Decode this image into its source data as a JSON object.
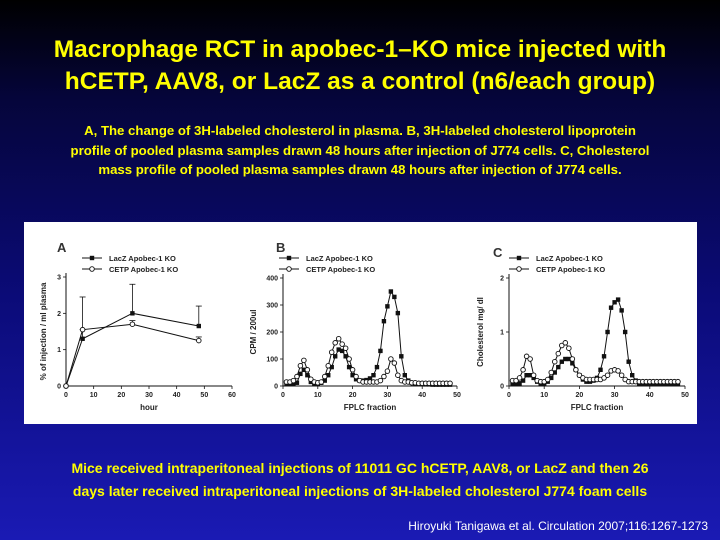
{
  "slide": {
    "title_line1": "Macrophage RCT in apobec-1–KO mice injected with",
    "title_line2": "hCETP, AAV8, or LacZ as a control (n6/each group)",
    "subtitle_line1": "A, The change of 3H-labeled cholesterol in plasma. B, 3H-labeled cholesterol lipoprotein",
    "subtitle_line2": "profile of pooled plasma samples drawn 48 hours after injection of J774 cells. C, Cholesterol",
    "subtitle_line3": "mass profile of pooled plasma samples drawn 48 hours after injection of J774 cells.",
    "note_line1": "Mice received intraperitoneal injections of 11011 GC hCETP, AAV8, or LacZ and then 26",
    "note_line2": "days later received intraperitoneal injections of 3H-labeled cholesterol J774 foam cells",
    "citation": "Hiroyuki Tanigawa et al. Circulation 2007;116:1267-1273"
  },
  "colors": {
    "title": "#ffff00",
    "citation": "#ffffff",
    "figure_bg": "#ffffff"
  },
  "chart_data": [
    {
      "panel": "A",
      "type": "line",
      "xlabel": "hour",
      "ylabel": "% of injection / ml plasma",
      "xlim": [
        0,
        60
      ],
      "ylim": [
        0,
        3
      ],
      "xticks": [
        0,
        10,
        20,
        30,
        40,
        50,
        60
      ],
      "yticks": [
        0,
        1,
        2,
        3
      ],
      "legend_position": "top",
      "series": [
        {
          "name": "LacZ Apobec-1 KO",
          "marker": "filled-square",
          "x": [
            0,
            6,
            24,
            48
          ],
          "y": [
            0,
            1.3,
            2.0,
            1.65
          ],
          "err": [
            0,
            0.25,
            0.8,
            0.55
          ]
        },
        {
          "name": "CETP Apobec-1 KO",
          "marker": "open-circle",
          "x": [
            0,
            6,
            24,
            48
          ],
          "y": [
            0,
            1.55,
            1.7,
            1.25
          ],
          "err": [
            0,
            0.9,
            0.1,
            0.1
          ]
        }
      ]
    },
    {
      "panel": "B",
      "type": "line",
      "xlabel": "FPLC fraction",
      "ylabel": "CPM / 200ul",
      "xlim": [
        0,
        50
      ],
      "ylim": [
        0,
        400
      ],
      "xticks": [
        0,
        10,
        20,
        30,
        40,
        50
      ],
      "yticks": [
        0,
        100,
        200,
        300,
        400
      ],
      "legend_position": "top",
      "series": [
        {
          "name": "LacZ Apobec-1 KO",
          "marker": "filled-square",
          "x": [
            1,
            2,
            3,
            4,
            5,
            6,
            7,
            8,
            9,
            10,
            11,
            12,
            13,
            14,
            15,
            16,
            17,
            18,
            19,
            20,
            21,
            22,
            23,
            24,
            25,
            26,
            27,
            28,
            29,
            30,
            31,
            32,
            33,
            34,
            35,
            36,
            37,
            38,
            39,
            40,
            41,
            42,
            43,
            44,
            45,
            46,
            47,
            48
          ],
          "y": [
            10,
            8,
            10,
            12,
            45,
            60,
            40,
            15,
            10,
            10,
            12,
            20,
            40,
            70,
            110,
            135,
            130,
            110,
            70,
            40,
            25,
            20,
            20,
            22,
            28,
            40,
            70,
            130,
            240,
            295,
            350,
            330,
            270,
            110,
            40,
            20,
            12,
            10,
            8,
            8,
            6,
            6,
            5,
            5,
            5,
            5,
            5,
            5
          ]
        },
        {
          "name": "CETP Apobec-1 KO",
          "marker": "open-circle",
          "x": [
            1,
            2,
            3,
            4,
            5,
            6,
            7,
            8,
            9,
            10,
            11,
            12,
            13,
            14,
            15,
            16,
            17,
            18,
            19,
            20,
            21,
            22,
            23,
            24,
            25,
            26,
            27,
            28,
            29,
            30,
            31,
            32,
            33,
            34,
            35,
            36,
            37,
            38,
            39,
            40,
            41,
            42,
            43,
            44,
            45,
            46,
            47,
            48
          ],
          "y": [
            15,
            15,
            20,
            35,
            75,
            95,
            60,
            25,
            15,
            12,
            15,
            35,
            75,
            125,
            160,
            175,
            155,
            140,
            100,
            60,
            35,
            20,
            15,
            15,
            15,
            15,
            15,
            20,
            35,
            55,
            100,
            85,
            40,
            20,
            15,
            15,
            12,
            12,
            10,
            10,
            10,
            10,
            10,
            10,
            10,
            10,
            10,
            10
          ]
        }
      ]
    },
    {
      "panel": "C",
      "type": "line",
      "xlabel": "FPLC fraction",
      "ylabel": "Cholesterol mg/ dl",
      "xlim": [
        0,
        50
      ],
      "ylim": [
        0,
        2
      ],
      "xticks": [
        0,
        10,
        20,
        30,
        40,
        50
      ],
      "yticks": [
        0,
        1,
        2
      ],
      "legend_position": "top",
      "series": [
        {
          "name": "LacZ Apobec-1 KO",
          "marker": "filled-square",
          "x": [
            1,
            2,
            3,
            4,
            5,
            6,
            7,
            8,
            9,
            10,
            11,
            12,
            13,
            14,
            15,
            16,
            17,
            18,
            19,
            20,
            21,
            22,
            23,
            24,
            25,
            26,
            27,
            28,
            29,
            30,
            31,
            32,
            33,
            34,
            35,
            36,
            37,
            38,
            39,
            40,
            41,
            42,
            43,
            44,
            45,
            46,
            47,
            48
          ],
          "y": [
            0.05,
            0.05,
            0.05,
            0.1,
            0.2,
            0.2,
            0.15,
            0.08,
            0.05,
            0.05,
            0.08,
            0.15,
            0.25,
            0.35,
            0.45,
            0.5,
            0.5,
            0.42,
            0.3,
            0.2,
            0.12,
            0.08,
            0.08,
            0.1,
            0.15,
            0.3,
            0.55,
            1.0,
            1.45,
            1.55,
            1.6,
            1.4,
            1.0,
            0.45,
            0.2,
            0.1,
            0.05,
            0.05,
            0.05,
            0.05,
            0.05,
            0.05,
            0.05,
            0.05,
            0.05,
            0.05,
            0.05,
            0.05
          ]
        },
        {
          "name": "CETP Apobec-1 KO",
          "marker": "open-circle",
          "x": [
            1,
            2,
            3,
            4,
            5,
            6,
            7,
            8,
            9,
            10,
            11,
            12,
            13,
            14,
            15,
            16,
            17,
            18,
            19,
            20,
            21,
            22,
            23,
            24,
            25,
            26,
            27,
            28,
            29,
            30,
            31,
            32,
            33,
            34,
            35,
            36,
            37,
            38,
            39,
            40,
            41,
            42,
            43,
            44,
            45,
            46,
            47,
            48
          ],
          "y": [
            0.1,
            0.1,
            0.15,
            0.3,
            0.55,
            0.5,
            0.2,
            0.1,
            0.08,
            0.08,
            0.12,
            0.25,
            0.45,
            0.6,
            0.75,
            0.8,
            0.7,
            0.5,
            0.3,
            0.2,
            0.15,
            0.12,
            0.12,
            0.12,
            0.12,
            0.12,
            0.15,
            0.2,
            0.28,
            0.3,
            0.28,
            0.2,
            0.12,
            0.08,
            0.08,
            0.08,
            0.08,
            0.08,
            0.08,
            0.08,
            0.08,
            0.08,
            0.08,
            0.08,
            0.08,
            0.08,
            0.08,
            0.08
          ]
        }
      ]
    }
  ]
}
